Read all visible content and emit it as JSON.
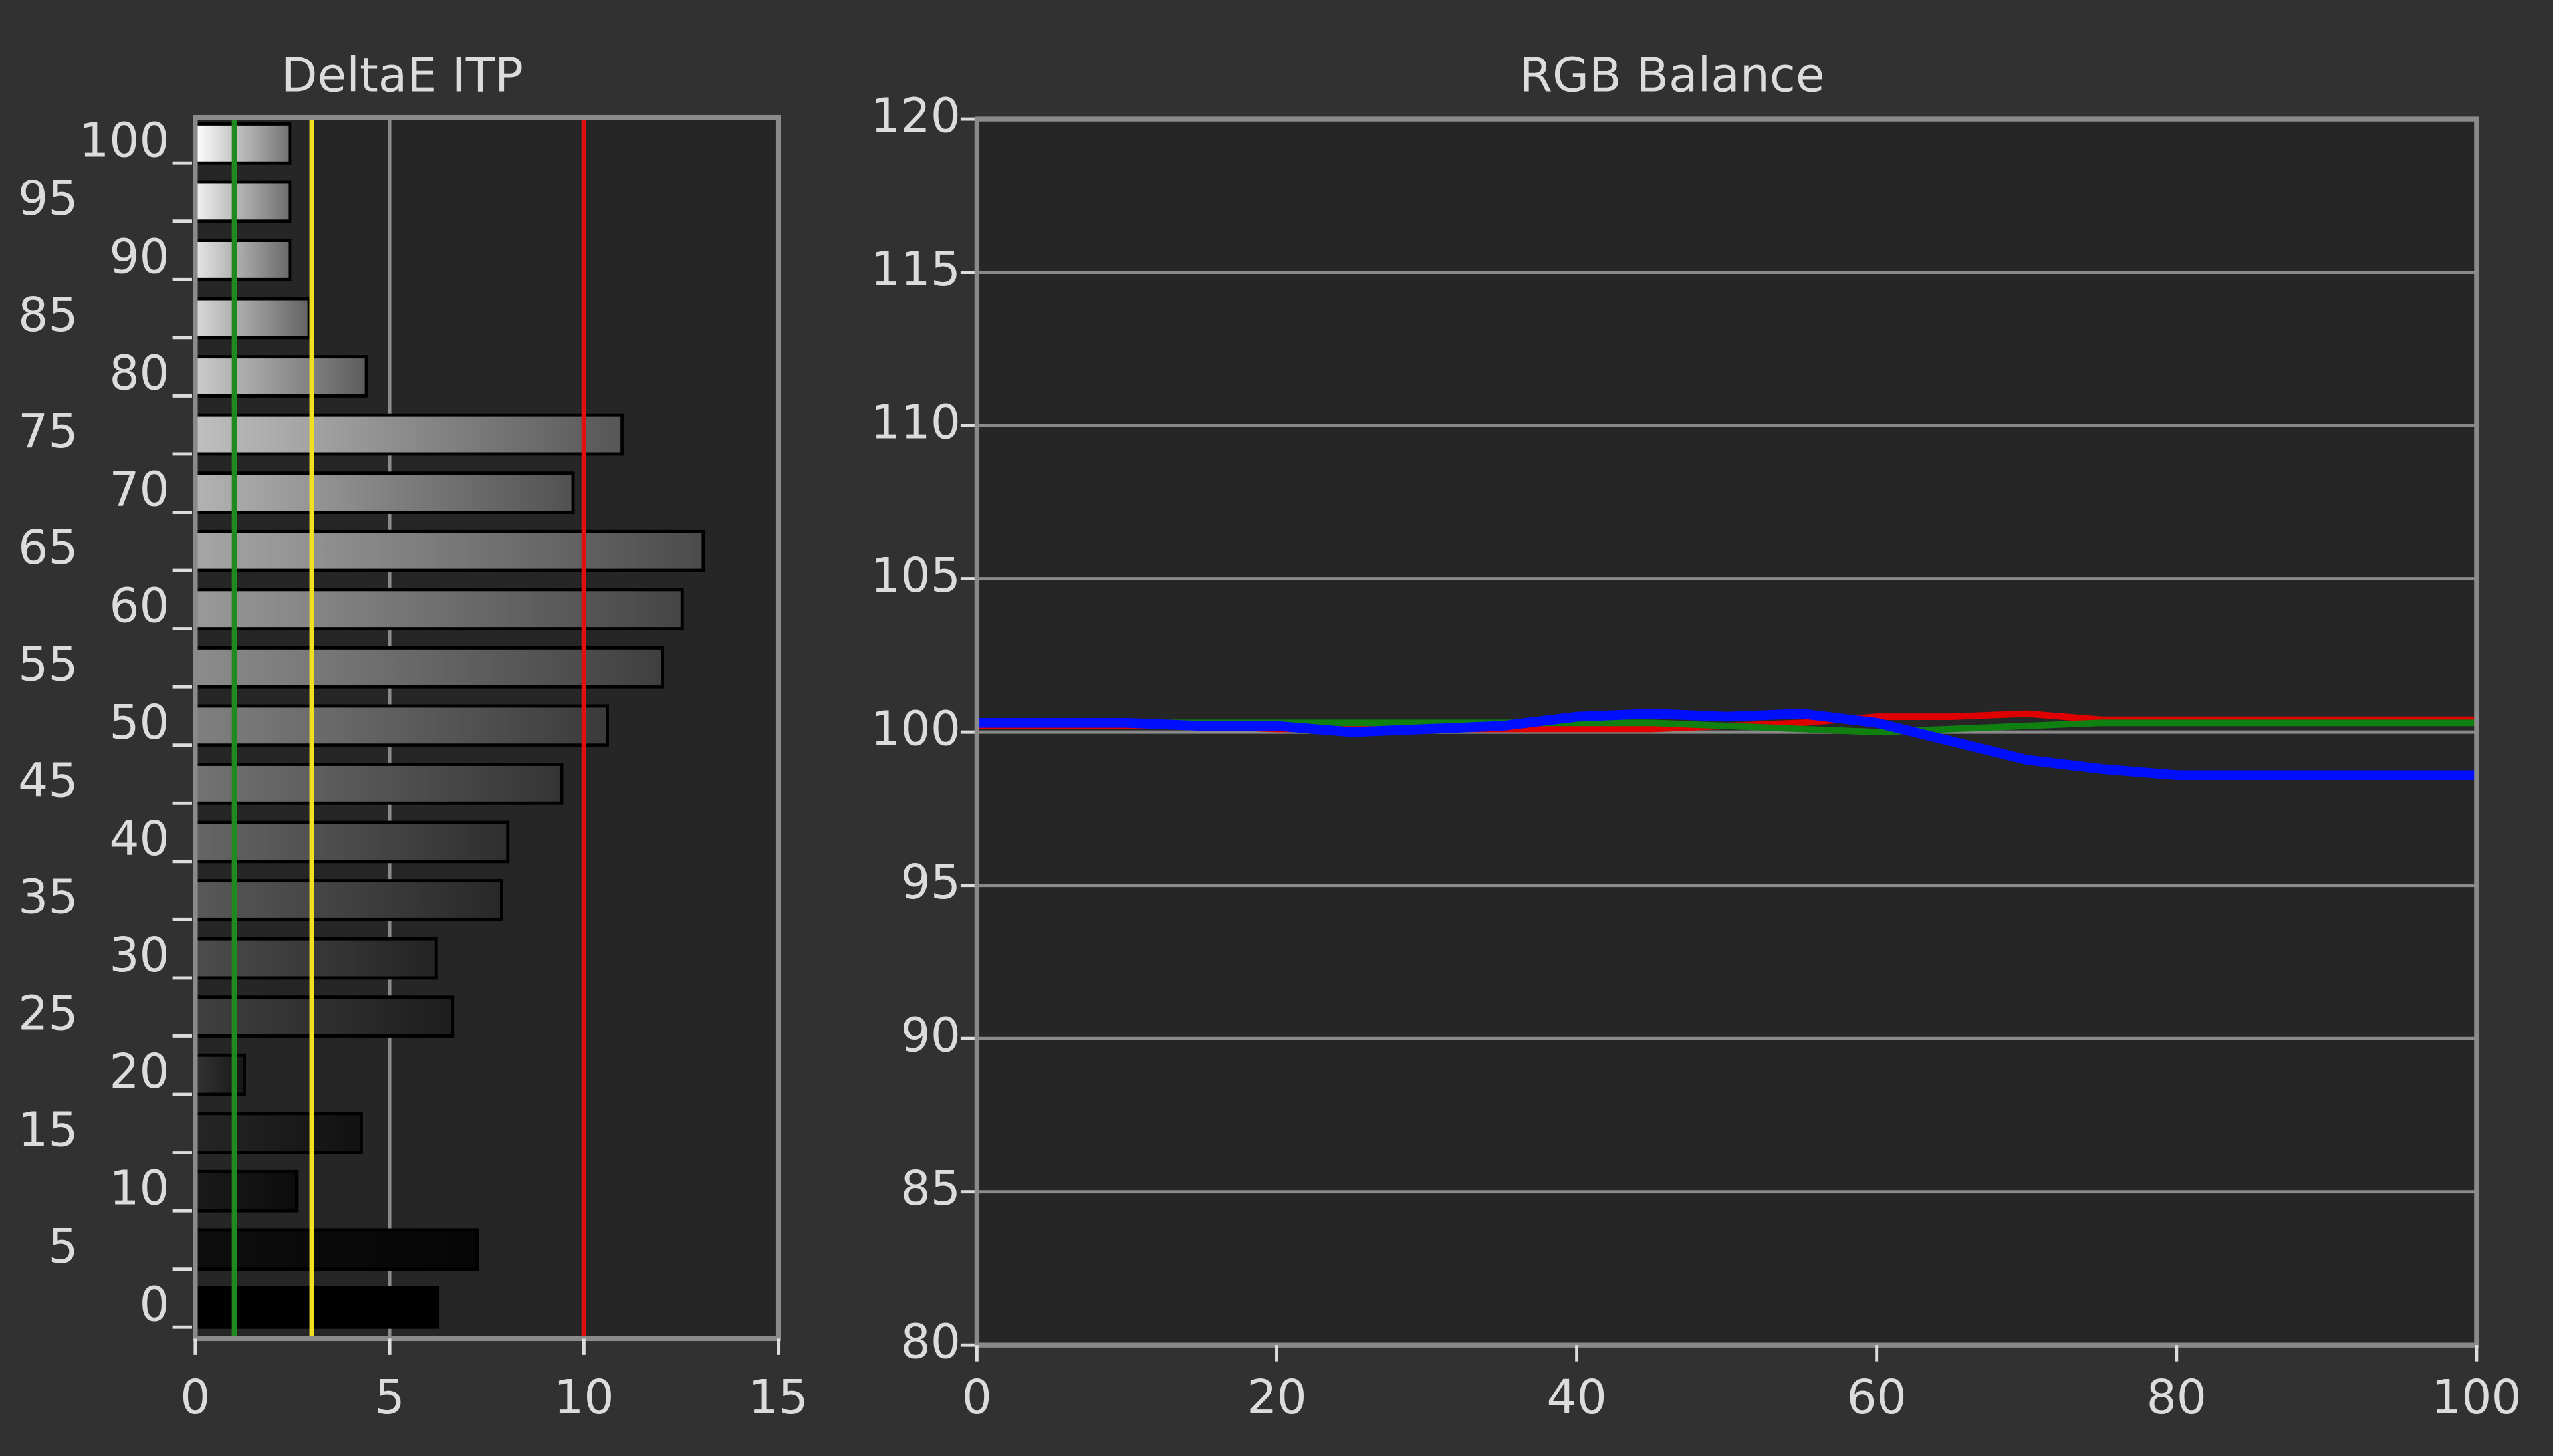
{
  "chart_data": [
    {
      "type": "hbar",
      "title": "DeltaE ITP",
      "categories": [
        0,
        5,
        10,
        15,
        20,
        25,
        30,
        35,
        40,
        45,
        50,
        55,
        60,
        65,
        70,
        75,
        80,
        85,
        90,
        95,
        100
      ],
      "values": [
        6.24,
        7.25,
        2.6,
        4.27,
        1.26,
        6.62,
        6.2,
        7.88,
        8.04,
        9.43,
        10.6,
        12.02,
        12.53,
        13.07,
        9.72,
        10.98,
        4.4,
        2.93,
        2.43,
        2.43,
        2.43
      ],
      "xlim": [
        0,
        15
      ],
      "xticks": [
        0,
        5,
        10,
        15
      ],
      "grid": true,
      "reference_lines": [
        {
          "value": 1,
          "color": "#1f8a1f"
        },
        {
          "value": 3,
          "color": "#f0e020"
        },
        {
          "value": 10,
          "color": "#e01010"
        }
      ]
    },
    {
      "type": "line",
      "title": "RGB Balance",
      "x": [
        0,
        5,
        10,
        15,
        20,
        25,
        30,
        35,
        40,
        45,
        50,
        55,
        60,
        65,
        70,
        75,
        80,
        85,
        90,
        95,
        100
      ],
      "series": [
        {
          "color": "#e00000",
          "values": [
            100.2,
            100.2,
            100.2,
            100.2,
            100.1,
            100.1,
            100.1,
            100.1,
            100.1,
            100.1,
            100.2,
            100.3,
            100.5,
            100.5,
            100.6,
            100.4,
            100.4,
            100.4,
            100.4,
            100.4,
            100.4
          ]
        },
        {
          "color": "#108010",
          "values": [
            100.3,
            100.3,
            100.3,
            100.3,
            100.3,
            100.3,
            100.3,
            100.3,
            100.3,
            100.3,
            100.2,
            100.1,
            100.0,
            100.1,
            100.2,
            100.3,
            100.3,
            100.3,
            100.3,
            100.3,
            100.3
          ]
        },
        {
          "color": "#0010ff",
          "values": [
            100.3,
            100.3,
            100.3,
            100.2,
            100.2,
            100.0,
            100.1,
            100.2,
            100.5,
            100.6,
            100.5,
            100.6,
            100.3,
            99.7,
            99.1,
            98.8,
            98.6,
            98.6,
            98.6,
            98.6,
            98.6
          ]
        }
      ],
      "xlim": [
        0,
        100
      ],
      "xticks": [
        0,
        20,
        40,
        60,
        80,
        100
      ],
      "ylim": [
        80,
        120
      ],
      "yticks": [
        80,
        85,
        90,
        95,
        100,
        105,
        110,
        115,
        120
      ],
      "grid": true
    }
  ]
}
